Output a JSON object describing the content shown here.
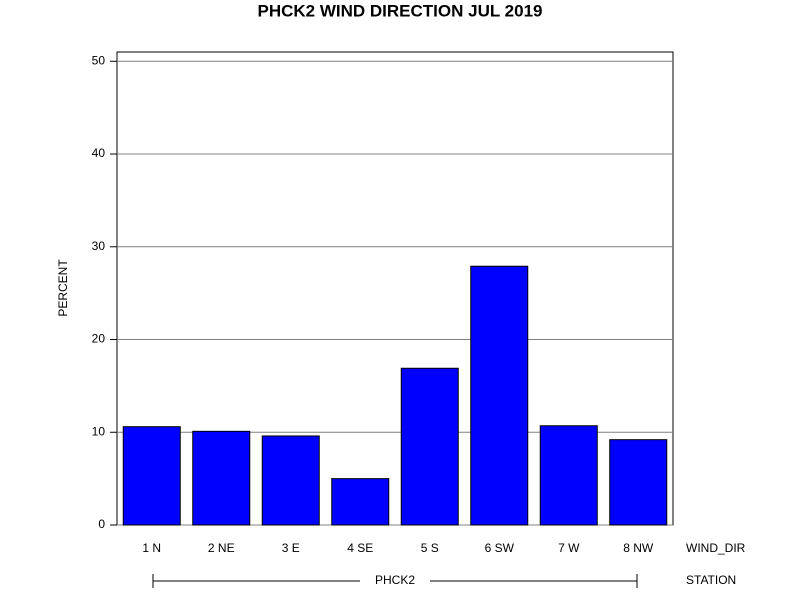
{
  "chart_data": {
    "type": "bar",
    "title": "PHCK2 WIND DIRECTION JUL 2019",
    "y_label": "PERCENT",
    "x_label": "WIND_DIR",
    "group_label": "STATION",
    "group": "PHCK2",
    "categories": [
      "1 N",
      "2 NE",
      "3 E",
      "4 SE",
      "5 S",
      "6 SW",
      "7 W",
      "8 NW"
    ],
    "values": [
      10.6,
      10.1,
      9.6,
      5.0,
      16.9,
      27.9,
      10.7,
      9.2
    ],
    "color": "#0000ff",
    "ylim": [
      0,
      51
    ],
    "yticks": [
      0,
      10,
      20,
      30,
      40,
      50
    ],
    "grid": true
  }
}
